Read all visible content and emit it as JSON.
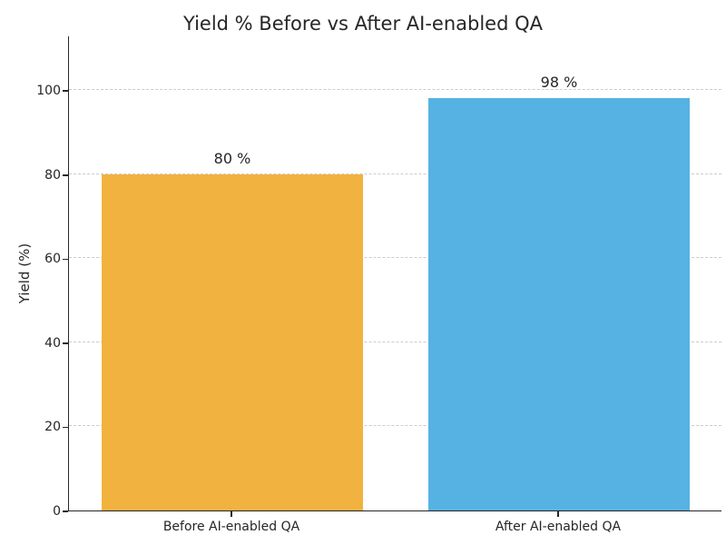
{
  "chart_data": {
    "type": "bar",
    "title": "Yield % Before vs After AI-enabled QA",
    "xlabel": "",
    "ylabel": "Yield (%)",
    "categories": [
      "Before AI-enabled QA",
      "After AI-enabled QA"
    ],
    "values": [
      80,
      98
    ],
    "value_labels": [
      "80 %",
      "98 %"
    ],
    "bar_colors": [
      "#F2B23F",
      "#56B2E2"
    ],
    "bar_width_fraction": 0.4,
    "y_ticks": [
      0,
      20,
      40,
      60,
      80,
      100
    ],
    "ylim": [
      0,
      113
    ],
    "grid": "horizontal-dashed",
    "legend_position": "none"
  },
  "colors": {
    "background": "#ffffff",
    "grid": "#cccccc",
    "axis": "#262626",
    "text": "#262626"
  }
}
